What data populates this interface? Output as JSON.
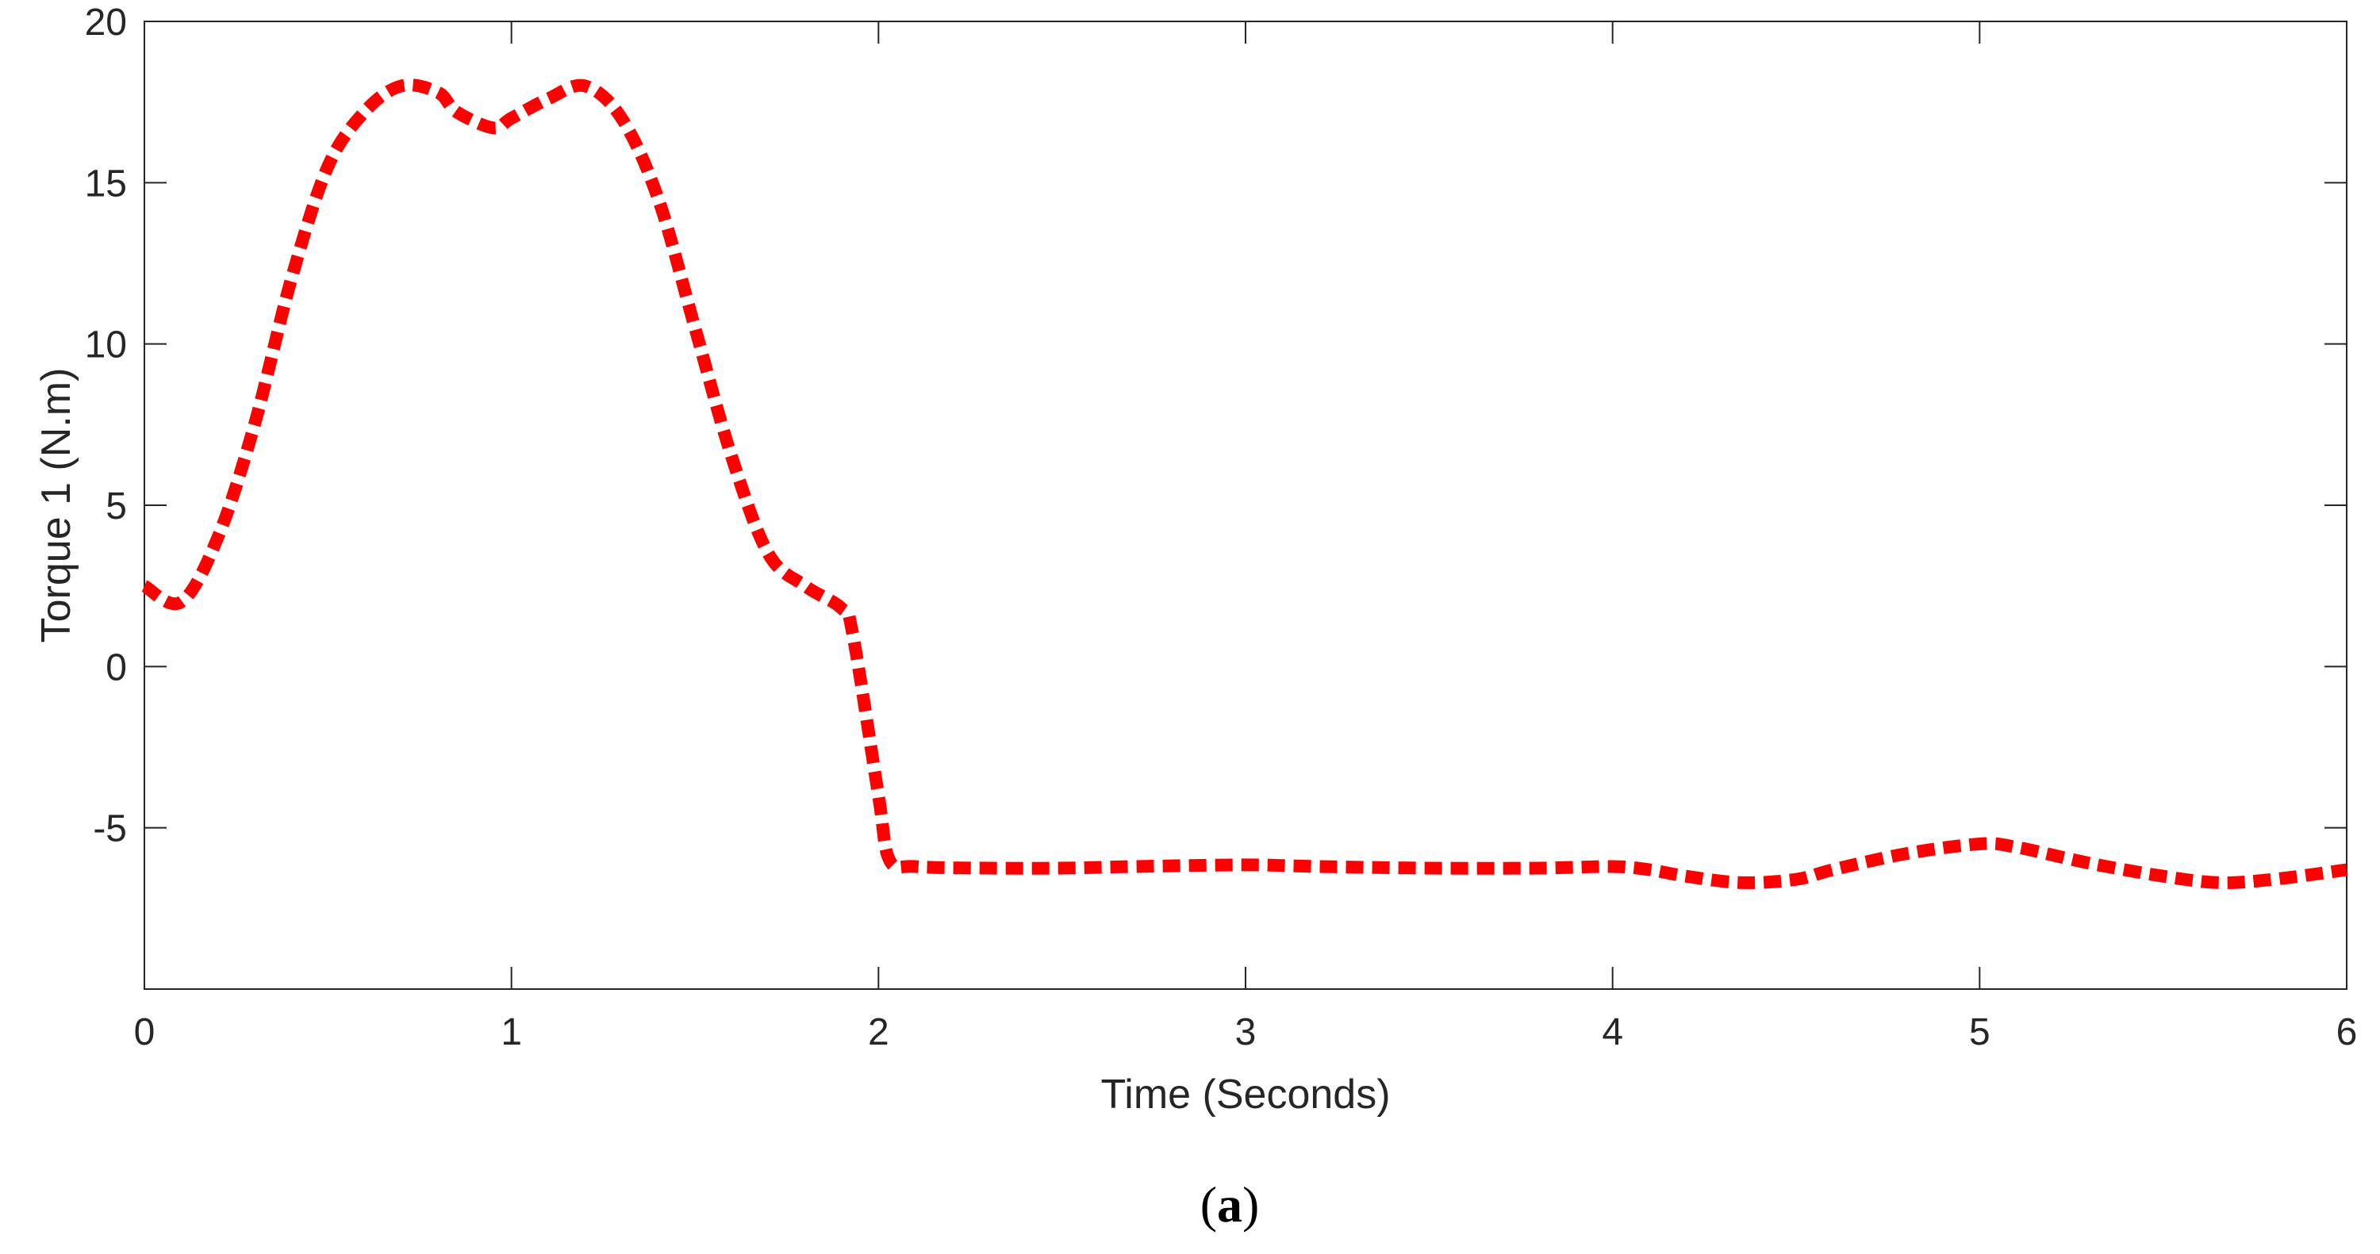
{
  "colors": {
    "series": "#ff0000",
    "axis": "#262626",
    "background": "#ffffff"
  },
  "panel_label": {
    "open": "(",
    "letter": "a",
    "close": ")"
  },
  "chart_data": {
    "type": "line",
    "title": "",
    "xlabel": "Time (Seconds)",
    "ylabel": "Torque 1 (N.m)",
    "xlim": [
      0,
      6
    ],
    "ylim": [
      -10,
      20
    ],
    "xticks": [
      0,
      1,
      2,
      3,
      4,
      5,
      6
    ],
    "xtick_labels": [
      "0",
      "1",
      "2",
      "3",
      "4",
      "5",
      "6"
    ],
    "yticks": [
      -5,
      0,
      5,
      10,
      15,
      20
    ],
    "ytick_labels": [
      "-5",
      "0",
      "5",
      "10",
      "15",
      "20"
    ],
    "grid": false,
    "line_style": "dotted",
    "series": [
      {
        "x": [
          0,
          0.1,
          0.2,
          0.3,
          0.4,
          0.5,
          0.6,
          0.7,
          0.8,
          0.85,
          0.95,
          1.0,
          1.1,
          1.2,
          1.3,
          1.4,
          1.5,
          1.6,
          1.7,
          1.8,
          1.9,
          1.93,
          2.0,
          2.03,
          2.1,
          2.3,
          2.5,
          2.7,
          3.0,
          3.2,
          3.5,
          3.8,
          4.0,
          4.1,
          4.2,
          4.35,
          4.5,
          4.6,
          4.8,
          5.0,
          5.1,
          5.3,
          5.5,
          5.65,
          5.8,
          6.0
        ],
        "y": [
          2.5,
          2.0,
          4.0,
          7.5,
          12.0,
          15.5,
          17.2,
          18.0,
          17.8,
          17.2,
          16.7,
          17.0,
          17.6,
          18.0,
          17.0,
          14.5,
          10.5,
          6.5,
          3.5,
          2.5,
          1.8,
          1.0,
          -4.0,
          -6.0,
          -6.2,
          -6.25,
          -6.25,
          -6.2,
          -6.15,
          -6.2,
          -6.25,
          -6.25,
          -6.2,
          -6.3,
          -6.5,
          -6.7,
          -6.6,
          -6.3,
          -5.8,
          -5.5,
          -5.6,
          -6.1,
          -6.5,
          -6.7,
          -6.6,
          -6.3
        ]
      }
    ]
  }
}
